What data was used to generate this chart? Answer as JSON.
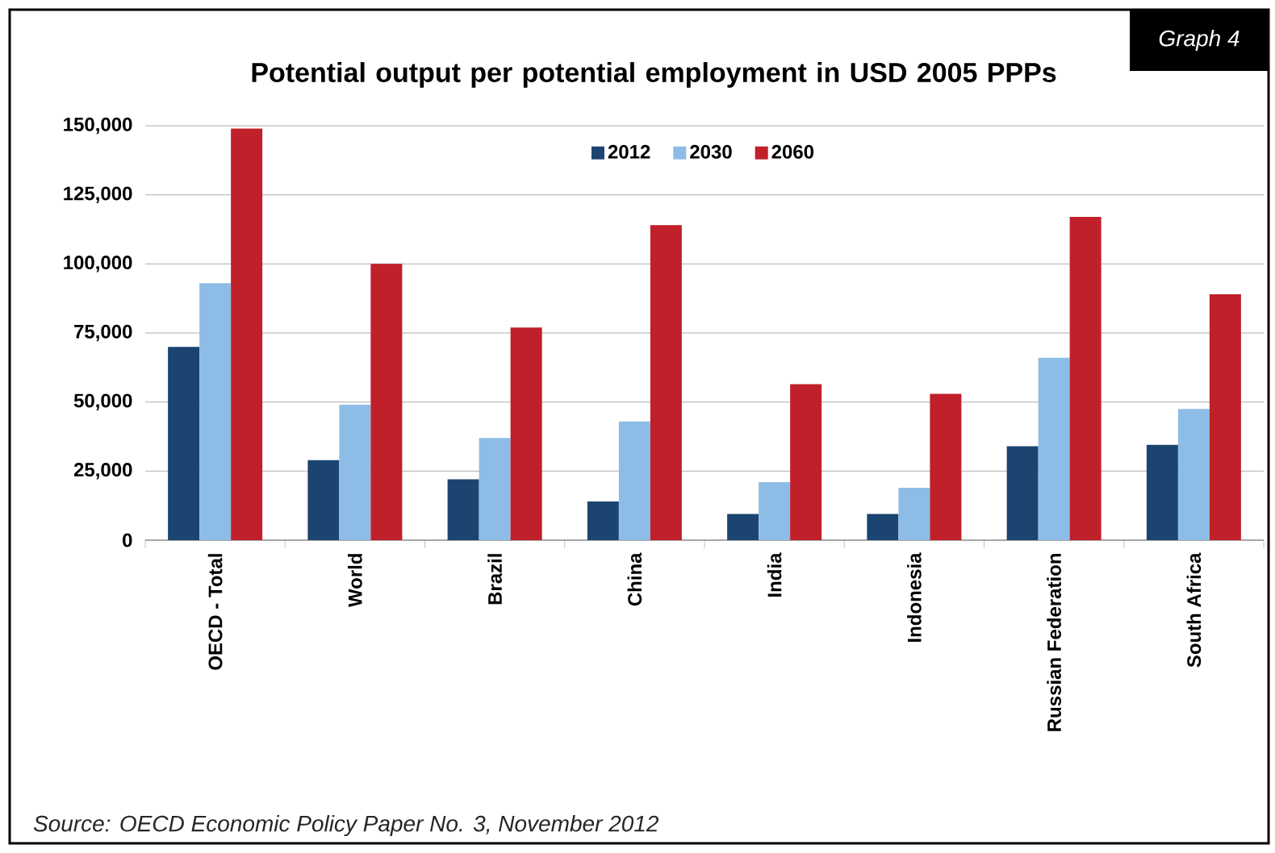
{
  "chart_data": {
    "type": "bar",
    "title": "Potential output per potential employment in USD 2005 PPPs",
    "categories": [
      "OECD - Total",
      "World",
      "Brazil",
      "China",
      "India",
      "Indonesia",
      "Russian Federation",
      "South Africa"
    ],
    "series": [
      {
        "name": "2012",
        "color": "#1b4470",
        "values": [
          70000,
          29000,
          22000,
          14000,
          9500,
          9500,
          34000,
          34500
        ]
      },
      {
        "name": "2030",
        "color": "#8dbde6",
        "values": [
          93000,
          49000,
          37000,
          43000,
          21000,
          19000,
          66000,
          47500
        ]
      },
      {
        "name": "2060",
        "color": "#c0202a",
        "values": [
          149000,
          100000,
          77000,
          114000,
          56500,
          53000,
          117000,
          89000
        ]
      }
    ],
    "ylim": [
      0,
      150000
    ],
    "yticks": [
      {
        "value": 0,
        "label": "0"
      },
      {
        "value": 25000,
        "label": "25,000"
      },
      {
        "value": 50000,
        "label": "50,000"
      },
      {
        "value": 75000,
        "label": "75,000"
      },
      {
        "value": 100000,
        "label": "100,000"
      },
      {
        "value": 125000,
        "label": "125,000"
      },
      {
        "value": 150000,
        "label": "150,000"
      }
    ],
    "grid": "y",
    "legend": "top",
    "annotations": [
      "Graph 4",
      "Source: OECD Economic Policy Paper No. 3, November 2012"
    ]
  }
}
